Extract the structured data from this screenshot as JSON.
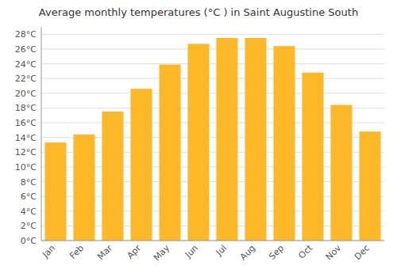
{
  "chart_data": {
    "type": "bar",
    "title": "Average monthly temperatures (°C ) in Saint Augustine South",
    "categories": [
      "Jan",
      "Feb",
      "Mar",
      "Apr",
      "May",
      "Jun",
      "Jul",
      "Aug",
      "Sep",
      "Oct",
      "Nov",
      "Dec"
    ],
    "values": [
      13.3,
      14.4,
      17.5,
      20.6,
      23.9,
      26.7,
      27.5,
      27.5,
      26.4,
      22.8,
      18.4,
      14.8
    ],
    "color": "#FDB827",
    "ylim": [
      0,
      29
    ],
    "yticks": [
      {
        "value": 0,
        "label": "0°C"
      },
      {
        "value": 2,
        "label": "2°C"
      },
      {
        "value": 4,
        "label": "4°C"
      },
      {
        "value": 6,
        "label": "6°C"
      },
      {
        "value": 8,
        "label": "8°C"
      },
      {
        "value": 10,
        "label": "10°C"
      },
      {
        "value": 12,
        "label": "12°C"
      },
      {
        "value": 14,
        "label": "14°C"
      },
      {
        "value": 16,
        "label": "16°C"
      },
      {
        "value": 18,
        "label": "18°C"
      },
      {
        "value": 20,
        "label": "20°C"
      },
      {
        "value": 22,
        "label": "22°C"
      },
      {
        "value": 24,
        "label": "24°C"
      },
      {
        "value": 26,
        "label": "26°C"
      },
      {
        "value": 28,
        "label": "28°C"
      }
    ],
    "grid": true
  }
}
